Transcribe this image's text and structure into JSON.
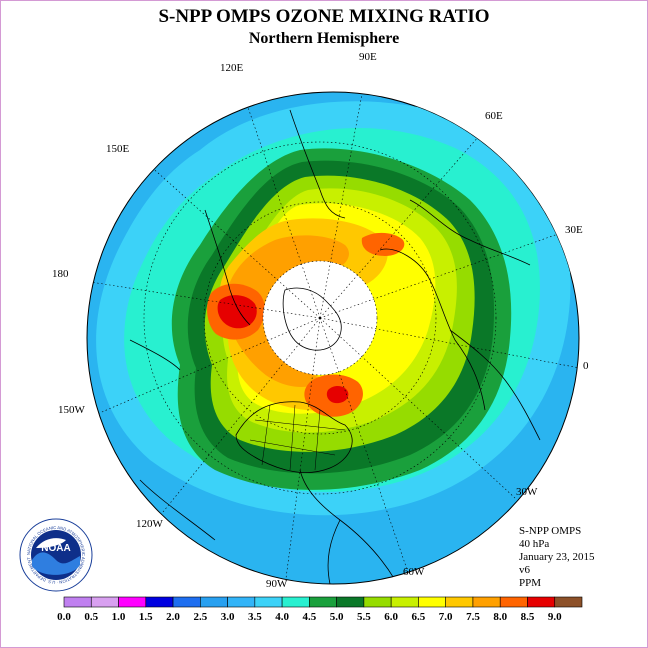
{
  "title": "S-NPP OMPS OZONE MIXING RATIO",
  "subtitle": "Northern Hemisphere",
  "longitude_labels": [
    "90E",
    "60E",
    "30E",
    "0",
    "30W",
    "60W",
    "90W",
    "120W",
    "150W",
    "180",
    "150E",
    "120E"
  ],
  "info": {
    "instrument": "S-NPP OMPS",
    "pressure": "40 hPa",
    "date": "January 23, 2015",
    "version": "v6",
    "units": "PPM"
  },
  "logo": {
    "text": "NOAA",
    "ring_text": "NATIONAL OCEANIC AND ATMOSPHERIC ADMINISTRATION · U.S. DEPARTMENT OF COMMERCE"
  },
  "colorbar": {
    "ticks": [
      "0.0",
      "0.5",
      "1.0",
      "1.5",
      "2.0",
      "2.5",
      "3.0",
      "3.5",
      "4.0",
      "4.5",
      "5.0",
      "5.5",
      "6.0",
      "6.5",
      "7.0",
      "7.5",
      "8.0",
      "8.5",
      "9.0"
    ],
    "colors": [
      "#c080f0",
      "#d8a0f0",
      "#ff00ff",
      "#0000e0",
      "#1e6ef0",
      "#28a0f0",
      "#32b4f8",
      "#3cd2f8",
      "#28f0d0",
      "#1aa03c",
      "#0a7828",
      "#96dc00",
      "#c8f000",
      "#ffff00",
      "#ffc800",
      "#ffa000",
      "#ff6400",
      "#e60000",
      "#8c5028"
    ]
  },
  "colors": {
    "ocean_outer": "#2ab4f0",
    "band_3_5": "#3cd2f8",
    "band_4_0": "#28f0d0",
    "band_4_5": "#1aa03c",
    "band_5_0": "#0a7828",
    "band_5_5": "#96dc00",
    "band_6_0": "#c8f000",
    "band_6_5": "#ffff00",
    "band_7_0": "#ffc800",
    "band_7_5": "#ffa000",
    "band_8_0": "#ff6400",
    "band_8_5": "#e60000",
    "no_data": "#ffffff",
    "frame": "#d49ad4"
  }
}
